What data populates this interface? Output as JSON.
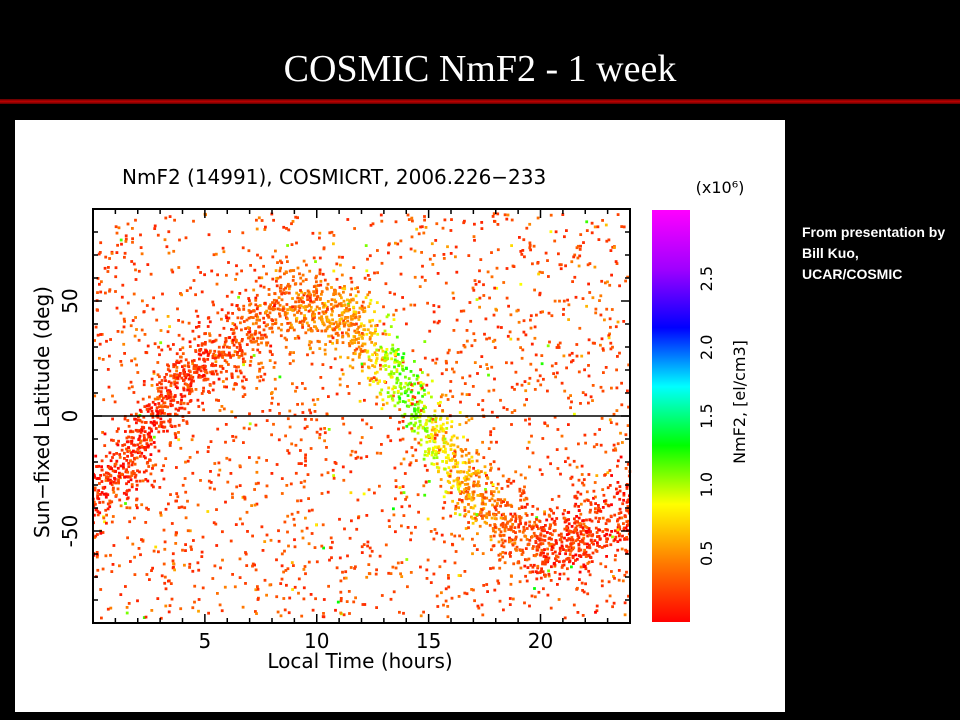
{
  "slide": {
    "title": "COSMIC NmF2 - 1 week",
    "credit": "From presentation by Bill Kuo, UCAR/COSMIC"
  },
  "colors": {
    "background": "#000000",
    "title_text": "#ffffff",
    "title_rule": "#c00000",
    "plot_background": "#ffffff"
  },
  "chart_data": {
    "type": "scatter",
    "title": "NmF2 (14991), COSMICRT, 2006.226−233",
    "xlabel": "Local Time (hours)",
    "ylabel": "Sun−fixed Latitude (deg)",
    "xlim": [
      0,
      24
    ],
    "ylim": [
      -90,
      90
    ],
    "xticks": [
      5,
      10,
      15,
      20
    ],
    "yticks": [
      -50,
      0,
      50
    ],
    "zero_line": true,
    "grid": false,
    "n_points": 14991,
    "colorbar": {
      "label": "NmF2, [el/cm3]",
      "multiplier": "(x10⁶)",
      "range": [
        0,
        3.0
      ],
      "ticks": [
        0.5,
        1.0,
        1.5,
        2.0,
        2.5
      ],
      "colors": [
        "#ff0000",
        "#ff7a00",
        "#ffff00",
        "#00ff00",
        "#00ffff",
        "#0000ff",
        "#a000ff",
        "#ff00ff"
      ]
    },
    "main_band": {
      "description_points_local_time": [
        0,
        2,
        4,
        6,
        8,
        9,
        10,
        12,
        14,
        16,
        18,
        20,
        22,
        24
      ],
      "latitude_deg": [
        -35,
        -15,
        15,
        32,
        45,
        48,
        47,
        38,
        12,
        -20,
        -45,
        -55,
        -55,
        -40
      ],
      "nmf2_1e6": [
        0.15,
        0.15,
        0.18,
        0.2,
        0.35,
        0.4,
        0.45,
        0.55,
        1.15,
        0.7,
        0.35,
        0.2,
        0.15,
        0.15
      ]
    }
  }
}
